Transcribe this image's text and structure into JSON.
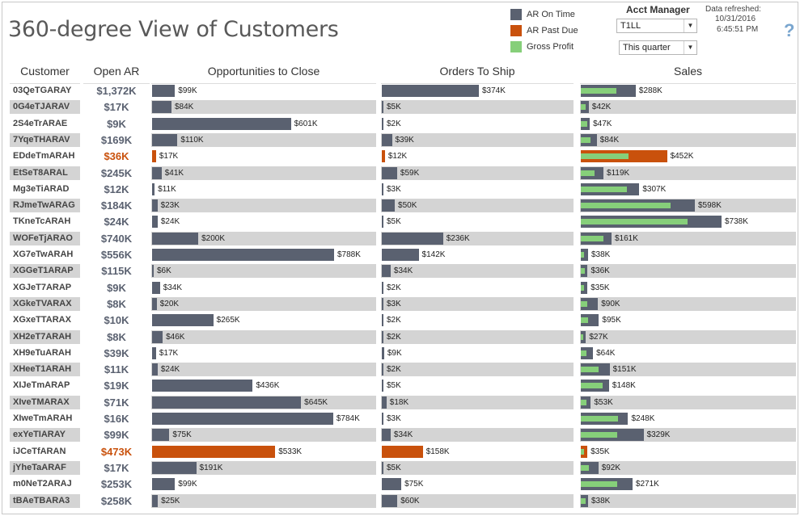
{
  "title": "360-degree View of Customers",
  "legend": [
    {
      "label": "AR On Time",
      "color": "#5a6170"
    },
    {
      "label": "AR Past Due",
      "color": "#c9510c"
    },
    {
      "label": "Gross Profit",
      "color": "#86cf7a"
    }
  ],
  "filters": {
    "acct_manager_label": "Acct Manager",
    "acct_manager_value": "T1LL",
    "period_value": "This quarter"
  },
  "refresh": {
    "label": "Data refreshed:",
    "date": "10/31/2016",
    "time": "6:45:51 PM"
  },
  "help_symbol": "?",
  "columns": {
    "customer": "Customer",
    "open_ar": "Open AR",
    "opportunities": "Opportunities to Close",
    "orders": "Orders To Ship",
    "sales": "Sales"
  },
  "colors": {
    "on_time": "#5a6170",
    "past_due": "#c9510c",
    "gross_profit": "#86cf7a",
    "band": "#d4d4d4"
  },
  "scales": {
    "opportunities_max_k": 788,
    "orders_max_k": 374,
    "sales_max_k": 738
  },
  "rows": [
    {
      "customer": "03QeTGARAY",
      "open_ar": "$1,372K",
      "past_due": false,
      "opp": "$99K",
      "opp_k": 99,
      "orders": "$374K",
      "orders_k": 374,
      "sales": "$288K",
      "sales_k": 288,
      "gp_k": 185
    },
    {
      "customer": "0G4eTJARAV",
      "open_ar": "$17K",
      "past_due": false,
      "opp": "$84K",
      "opp_k": 84,
      "orders": "$5K",
      "orders_k": 5,
      "sales": "$42K",
      "sales_k": 42,
      "gp_k": 25
    },
    {
      "customer": "2S4eTrARAE",
      "open_ar": "$9K",
      "past_due": false,
      "opp": "$601K",
      "opp_k": 601,
      "orders": "$2K",
      "orders_k": 2,
      "sales": "$47K",
      "sales_k": 47,
      "gp_k": 32
    },
    {
      "customer": "7YqeTHARAV",
      "open_ar": "$169K",
      "past_due": false,
      "opp": "$110K",
      "opp_k": 110,
      "orders": "$39K",
      "orders_k": 39,
      "sales": "$84K",
      "sales_k": 84,
      "gp_k": 50
    },
    {
      "customer": "EDdeTmARAH",
      "open_ar": "$36K",
      "past_due": true,
      "opp": "$17K",
      "opp_k": 17,
      "orders": "$12K",
      "orders_k": 12,
      "sales": "$452K",
      "sales_k": 452,
      "gp_k": 250
    },
    {
      "customer": "EtSeT8ARAL",
      "open_ar": "$245K",
      "past_due": false,
      "opp": "$41K",
      "opp_k": 41,
      "orders": "$59K",
      "orders_k": 59,
      "sales": "$119K",
      "sales_k": 119,
      "gp_k": 70
    },
    {
      "customer": "Mg3eTiARAD",
      "open_ar": "$12K",
      "past_due": false,
      "opp": "$11K",
      "opp_k": 11,
      "orders": "$3K",
      "orders_k": 3,
      "sales": "$307K",
      "sales_k": 307,
      "gp_k": 240
    },
    {
      "customer": "RJmeTwARAG",
      "open_ar": "$184K",
      "past_due": false,
      "opp": "$23K",
      "opp_k": 23,
      "orders": "$50K",
      "orders_k": 50,
      "sales": "$598K",
      "sales_k": 598,
      "gp_k": 470
    },
    {
      "customer": "TKneTcARAH",
      "open_ar": "$24K",
      "past_due": false,
      "opp": "$24K",
      "opp_k": 24,
      "orders": "$5K",
      "orders_k": 5,
      "sales": "$738K",
      "sales_k": 738,
      "gp_k": 560
    },
    {
      "customer": "WOFeTjARAO",
      "open_ar": "$740K",
      "past_due": false,
      "opp": "$200K",
      "opp_k": 200,
      "orders": "$236K",
      "orders_k": 236,
      "sales": "$161K",
      "sales_k": 161,
      "gp_k": 120
    },
    {
      "customer": "XG7eTwARAH",
      "open_ar": "$556K",
      "past_due": false,
      "opp": "$788K",
      "opp_k": 788,
      "orders": "$142K",
      "orders_k": 142,
      "sales": "$38K",
      "sales_k": 38,
      "gp_k": 18
    },
    {
      "customer": "XGGeT1ARAP",
      "open_ar": "$115K",
      "past_due": false,
      "opp": "$6K",
      "opp_k": 6,
      "orders": "$34K",
      "orders_k": 34,
      "sales": "$36K",
      "sales_k": 36,
      "gp_k": 20
    },
    {
      "customer": "XGJeT7ARAP",
      "open_ar": "$9K",
      "past_due": false,
      "opp": "$34K",
      "opp_k": 34,
      "orders": "$2K",
      "orders_k": 2,
      "sales": "$35K",
      "sales_k": 35,
      "gp_k": 15
    },
    {
      "customer": "XGkeTVARAX",
      "open_ar": "$8K",
      "past_due": false,
      "opp": "$20K",
      "opp_k": 20,
      "orders": "$3K",
      "orders_k": 3,
      "sales": "$90K",
      "sales_k": 90,
      "gp_k": 35
    },
    {
      "customer": "XGxeTTARAX",
      "open_ar": "$10K",
      "past_due": false,
      "opp": "$265K",
      "opp_k": 265,
      "orders": "$2K",
      "orders_k": 2,
      "sales": "$95K",
      "sales_k": 95,
      "gp_k": 40
    },
    {
      "customer": "XH2eT7ARAH",
      "open_ar": "$8K",
      "past_due": false,
      "opp": "$46K",
      "opp_k": 46,
      "orders": "$2K",
      "orders_k": 2,
      "sales": "$27K",
      "sales_k": 27,
      "gp_k": 14
    },
    {
      "customer": "XH9eTuARAH",
      "open_ar": "$39K",
      "past_due": false,
      "opp": "$17K",
      "opp_k": 17,
      "orders": "$9K",
      "orders_k": 9,
      "sales": "$64K",
      "sales_k": 64,
      "gp_k": 30
    },
    {
      "customer": "XHeeT1ARAH",
      "open_ar": "$11K",
      "past_due": false,
      "opp": "$24K",
      "opp_k": 24,
      "orders": "$2K",
      "orders_k": 2,
      "sales": "$151K",
      "sales_k": 151,
      "gp_k": 95
    },
    {
      "customer": "XIJeTmARAP",
      "open_ar": "$19K",
      "past_due": false,
      "opp": "$436K",
      "opp_k": 436,
      "orders": "$5K",
      "orders_k": 5,
      "sales": "$148K",
      "sales_k": 148,
      "gp_k": 115
    },
    {
      "customer": "XIveTMARAX",
      "open_ar": "$71K",
      "past_due": false,
      "opp": "$645K",
      "opp_k": 645,
      "orders": "$18K",
      "orders_k": 18,
      "sales": "$53K",
      "sales_k": 53,
      "gp_k": 28
    },
    {
      "customer": "XIweTmARAH",
      "open_ar": "$16K",
      "past_due": false,
      "opp": "$784K",
      "opp_k": 784,
      "orders": "$3K",
      "orders_k": 3,
      "sales": "$248K",
      "sales_k": 248,
      "gp_k": 195
    },
    {
      "customer": "exYeTIARAY",
      "open_ar": "$99K",
      "past_due": false,
      "opp": "$75K",
      "opp_k": 75,
      "orders": "$34K",
      "orders_k": 34,
      "sales": "$329K",
      "sales_k": 329,
      "gp_k": 190
    },
    {
      "customer": "iJCeTfARAN",
      "open_ar": "$473K",
      "past_due": true,
      "opp": "$533K",
      "opp_k": 533,
      "orders": "$158K",
      "orders_k": 158,
      "sales": "$35K",
      "sales_k": 35,
      "gp_k": 15
    },
    {
      "customer": "jYheTaARAF",
      "open_ar": "$17K",
      "past_due": false,
      "opp": "$191K",
      "opp_k": 191,
      "orders": "$5K",
      "orders_k": 5,
      "sales": "$92K",
      "sales_k": 92,
      "gp_k": 42
    },
    {
      "customer": "m0NeT2ARAJ",
      "open_ar": "$253K",
      "past_due": false,
      "opp": "$99K",
      "opp_k": 99,
      "orders": "$75K",
      "orders_k": 75,
      "sales": "$271K",
      "sales_k": 271,
      "gp_k": 190
    },
    {
      "customer": "tBAeTBARA3",
      "open_ar": "$258K",
      "past_due": false,
      "opp": "$25K",
      "opp_k": 25,
      "orders": "$60K",
      "orders_k": 60,
      "sales": "$38K",
      "sales_k": 38,
      "gp_k": 25
    }
  ]
}
